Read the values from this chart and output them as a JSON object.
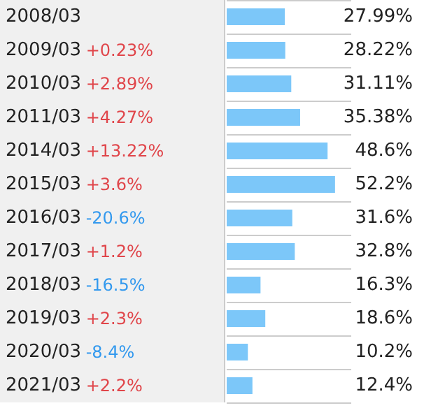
{
  "chart_data": {
    "type": "bar",
    "orientation": "horizontal",
    "grid": true,
    "categories": [
      "2008/03",
      "2009/03",
      "2010/03",
      "2011/03",
      "2014/03",
      "2015/03",
      "2016/03",
      "2017/03",
      "2018/03",
      "2019/03",
      "2020/03",
      "2021/03"
    ],
    "values": [
      27.99,
      28.22,
      31.11,
      35.38,
      48.6,
      52.2,
      31.6,
      32.8,
      16.3,
      18.6,
      10.2,
      12.4
    ],
    "value_labels": [
      "27.99%",
      "28.22%",
      "31.11%",
      "35.38%",
      "48.6%",
      "52.2%",
      "31.6%",
      "32.8%",
      "16.3%",
      "18.6%",
      "10.2%",
      "12.4%"
    ],
    "color": "#7cc7f9",
    "annotations": [
      "+0.23%",
      "+2.89%",
      "+4.27%",
      "+13.22%",
      "+3.6%",
      "-20.6%",
      "+1.2%",
      "-16.5%",
      "+2.3%",
      "-8.4%",
      "+2.2%"
    ]
  }
}
